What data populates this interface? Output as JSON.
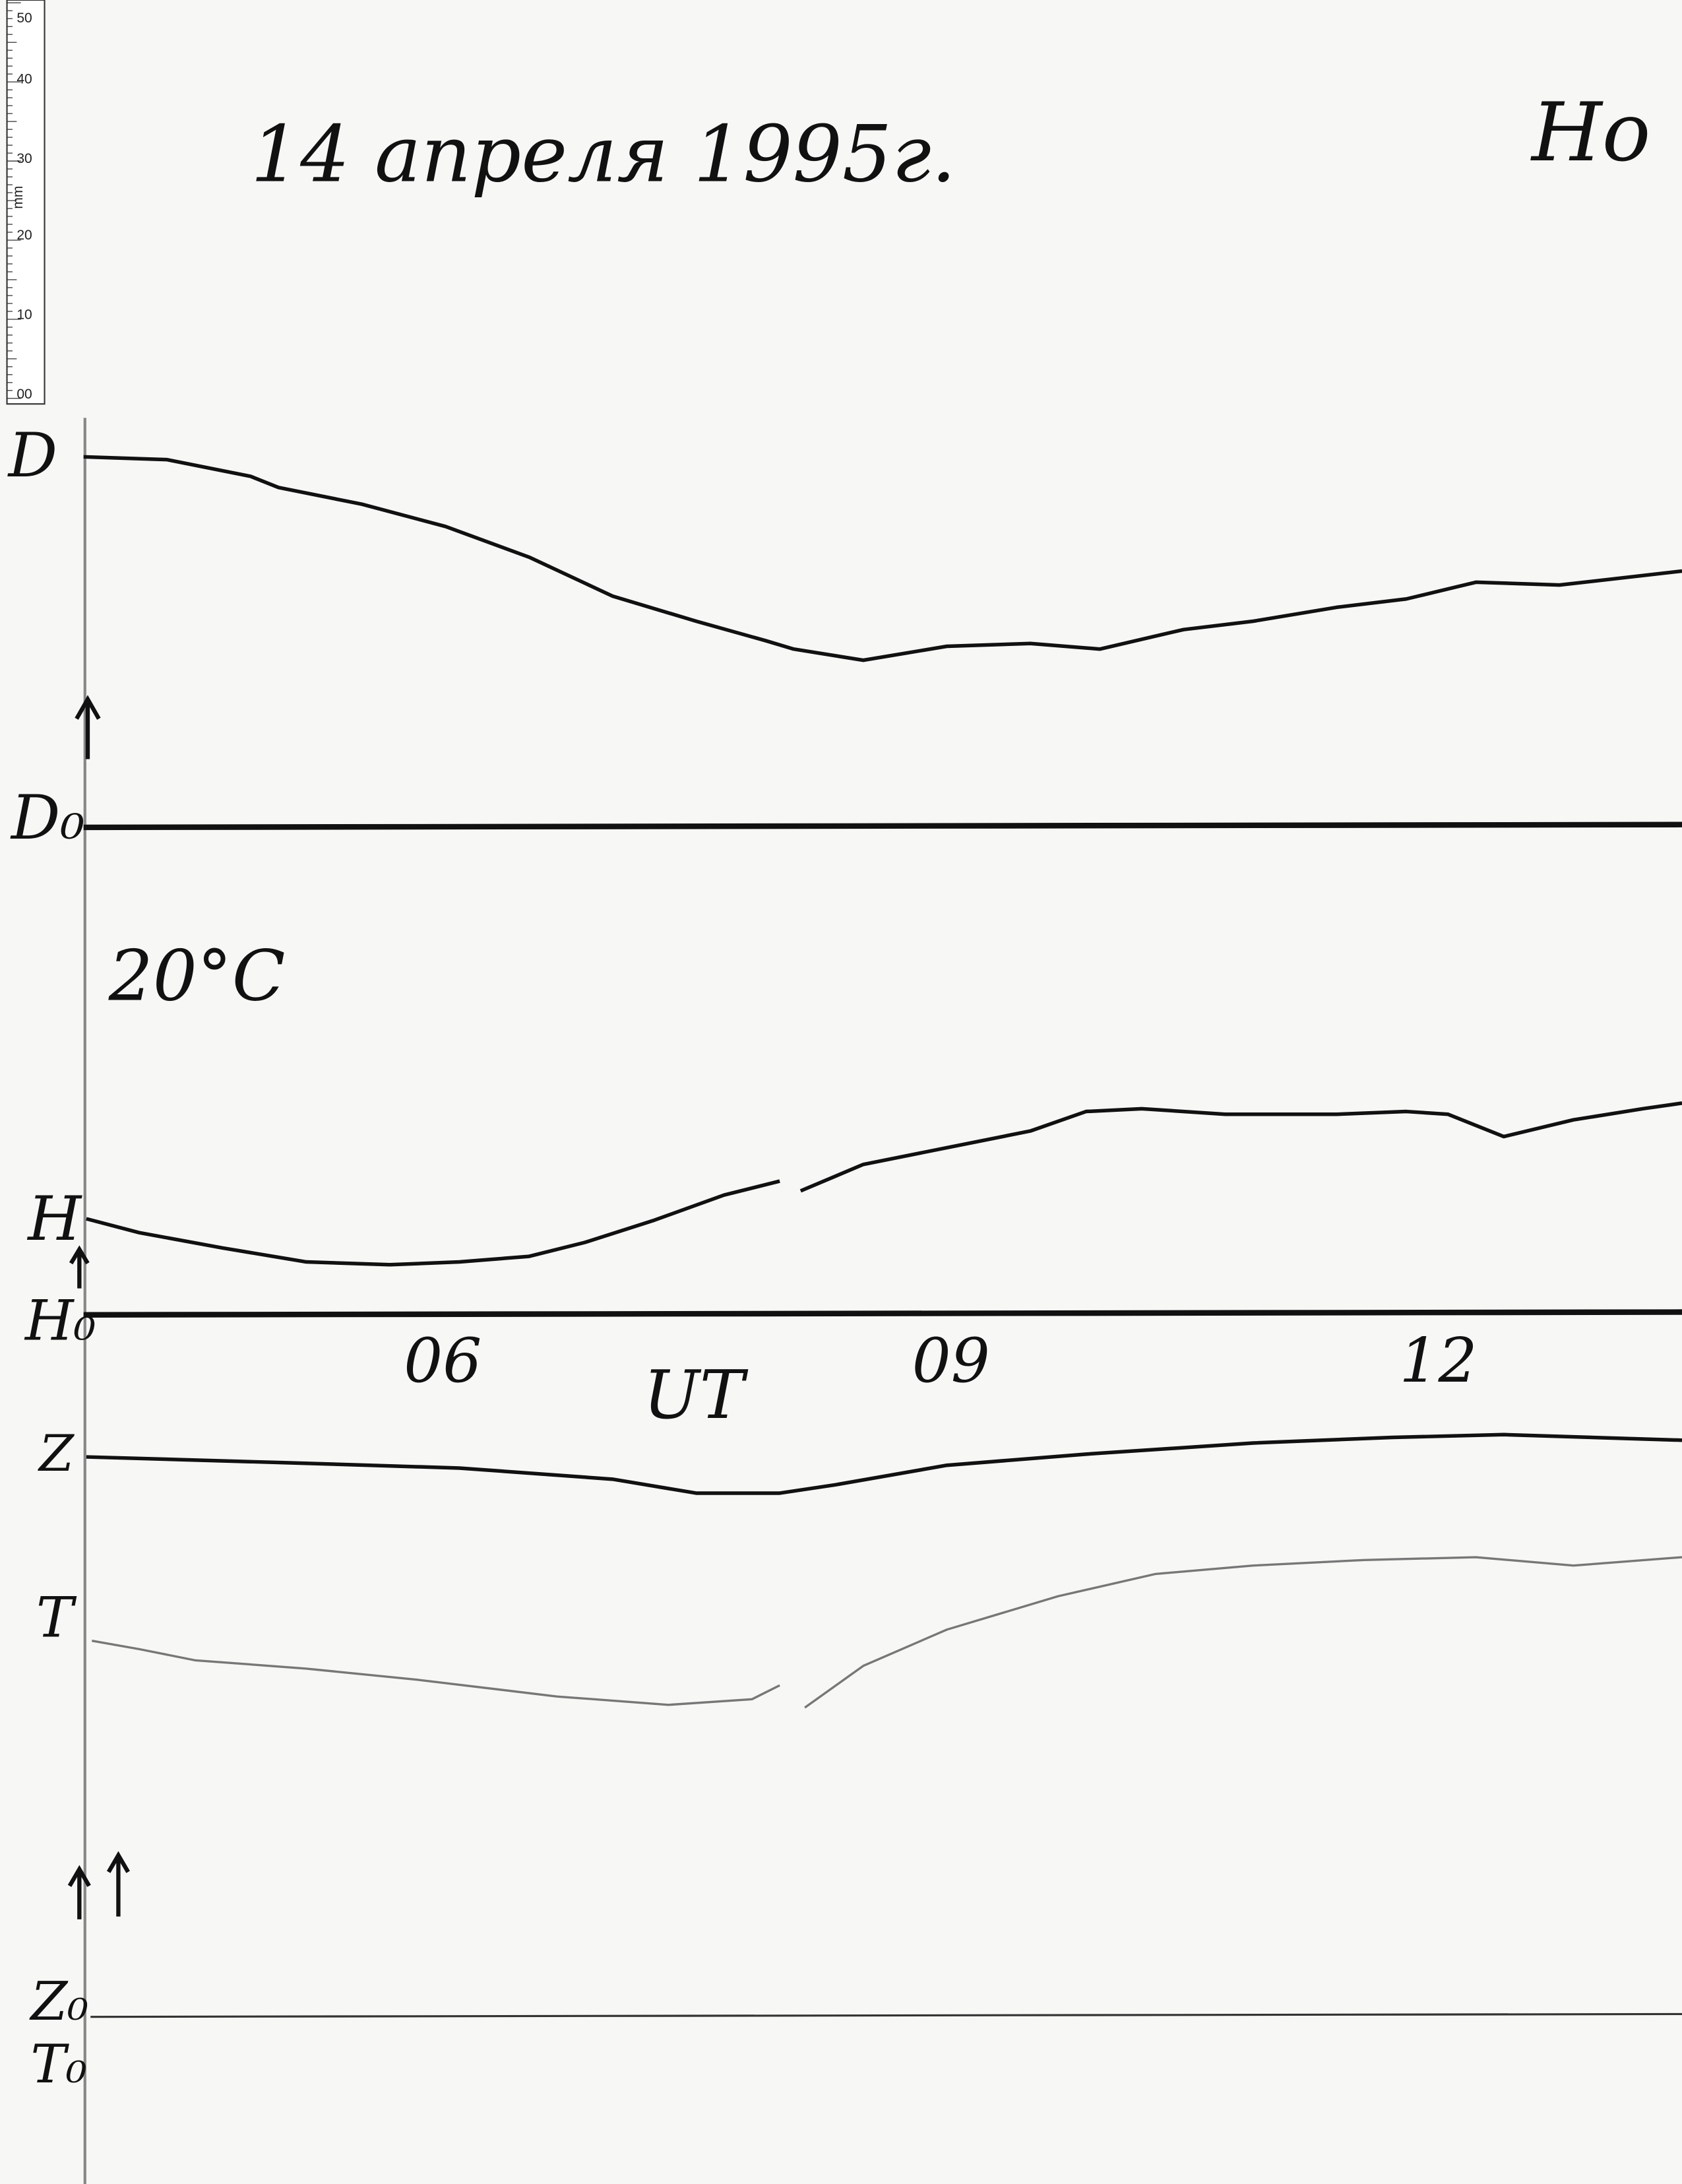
{
  "ruler": {
    "labels": [
      "50",
      "40",
      "30",
      "20",
      "10",
      "00"
    ],
    "unit": "mm"
  },
  "header": {
    "title": "14 апреля 1995г.",
    "station": "Но"
  },
  "labels": {
    "d": "D",
    "d0": "D₀",
    "temperature": "20°C",
    "h": "H",
    "h0": "H₀",
    "z": "Z",
    "t": "T",
    "z0": "Z₀",
    "t0": "T₀"
  },
  "time_axis": {
    "ticks": [
      "06",
      "09",
      "12"
    ],
    "label": "UT"
  }
}
